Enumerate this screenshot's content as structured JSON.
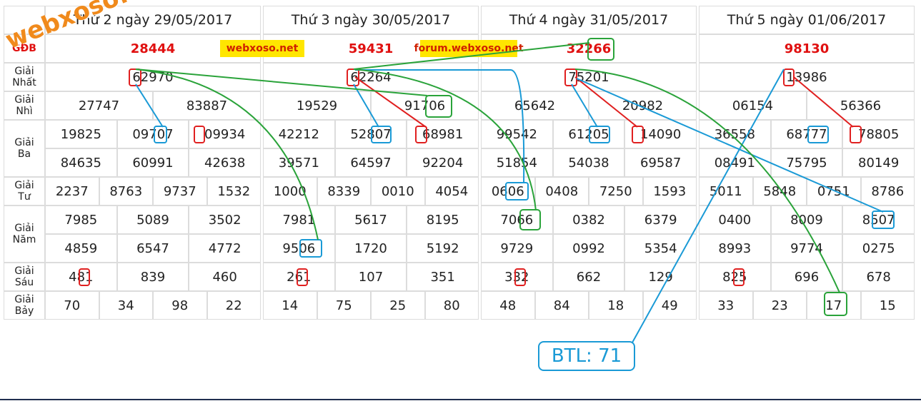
{
  "row_labels": [
    "GĐB",
    "Giải Nhất",
    "Giải Nhì",
    "Giải Ba",
    "Giải Tư",
    "Giải Năm",
    "Giải Sáu",
    "Giải Bảy"
  ],
  "days": [
    {
      "header": "Thứ 2 ngày 29/05/2017",
      "db": "28444",
      "nhat": [
        "62970"
      ],
      "nhi": [
        "27747",
        "83887"
      ],
      "ba": [
        "19825",
        "09707",
        "09934",
        "84635",
        "60991",
        "42638"
      ],
      "tu": [
        "2237",
        "8763",
        "9737",
        "1532"
      ],
      "nam": [
        "7985",
        "5089",
        "3502",
        "4859",
        "6547",
        "4772"
      ],
      "sau": [
        "481",
        "839",
        "460"
      ],
      "bay": [
        "70",
        "34",
        "98",
        "22"
      ]
    },
    {
      "header": "Thứ 3 ngày 30/05/2017",
      "db": "59431",
      "nhat": [
        "62264"
      ],
      "nhi": [
        "19529",
        "91706"
      ],
      "ba": [
        "42212",
        "52807",
        "68981",
        "39571",
        "64597",
        "92204"
      ],
      "tu": [
        "1000",
        "8339",
        "0010",
        "4054"
      ],
      "nam": [
        "7981",
        "5617",
        "8195",
        "9506",
        "1720",
        "5192"
      ],
      "sau": [
        "261",
        "107",
        "351"
      ],
      "bay": [
        "14",
        "75",
        "25",
        "80"
      ]
    },
    {
      "header": "Thứ 4 ngày 31/05/2017",
      "db": "32266",
      "nhat": [
        "75201"
      ],
      "nhi": [
        "65642",
        "20982"
      ],
      "ba": [
        "99542",
        "61205",
        "14090",
        "51854",
        "54038",
        "69587"
      ],
      "tu": [
        "0606",
        "0408",
        "7250",
        "1593"
      ],
      "nam": [
        "7066",
        "0382",
        "6379",
        "9729",
        "0992",
        "5354"
      ],
      "sau": [
        "332",
        "662",
        "129"
      ],
      "bay": [
        "48",
        "84",
        "18",
        "49"
      ]
    },
    {
      "header": "Thứ 5 ngày 01/06/2017",
      "db": "98130",
      "nhat": [
        "13986"
      ],
      "nhi": [
        "06154",
        "56366"
      ],
      "ba": [
        "36558",
        "68777",
        "78805",
        "08491",
        "75795",
        "80149"
      ],
      "tu": [
        "5011",
        "5848",
        "0751",
        "8786"
      ],
      "nam": [
        "0400",
        "8009",
        "8507",
        "8993",
        "9774",
        "0275"
      ],
      "sau": [
        "825",
        "696",
        "678"
      ],
      "bay": [
        "33",
        "23",
        "17",
        "15"
      ]
    }
  ],
  "badges": [
    "webxoso.net",
    "forum.webxoso.net"
  ],
  "watermark": "webxoso.net",
  "note": "BTL: 71"
}
